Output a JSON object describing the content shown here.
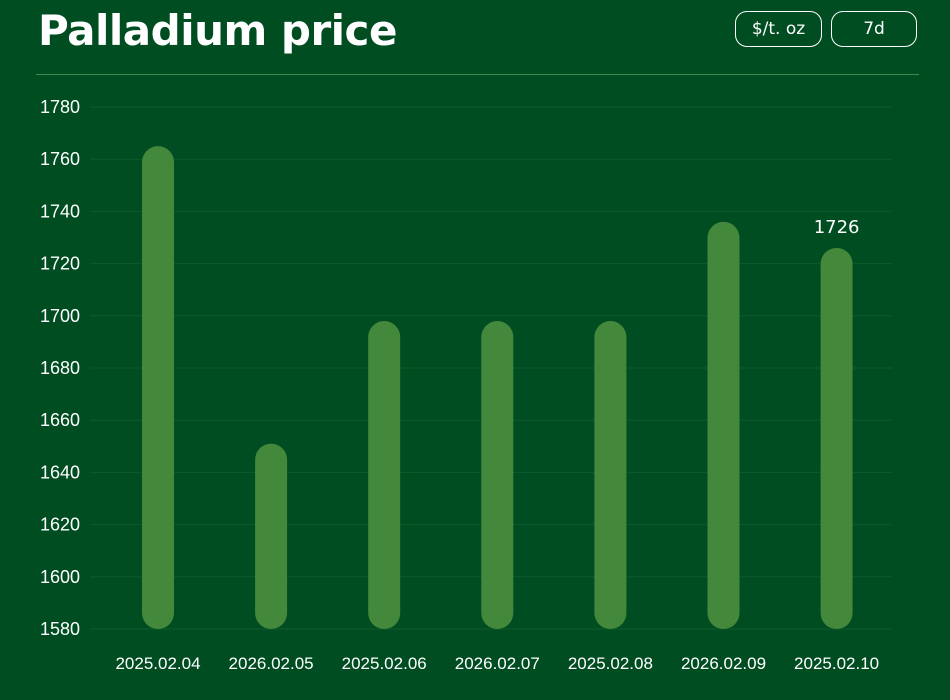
{
  "header": {
    "title": "Palladium price",
    "unit_label": "$/t. oz",
    "range_label": "7d"
  },
  "colors": {
    "background": "#004d22",
    "bar": "#44883c",
    "grid": "#0f5a2c",
    "text": "#ffffff"
  },
  "chart_data": {
    "type": "bar",
    "title": "Palladium price",
    "categories": [
      "2025.02.04",
      "2026.02.05",
      "2025.02.06",
      "2026.02.07",
      "2025.02.08",
      "2026.02.09",
      "2025.02.10"
    ],
    "values": [
      1765,
      1651,
      1698,
      1698,
      1698,
      1736,
      1726
    ],
    "data_labels": [
      {
        "index": 6,
        "text": "1726"
      }
    ],
    "ylim": [
      1580,
      1780
    ],
    "yticks": [
      1580,
      1600,
      1620,
      1640,
      1660,
      1680,
      1700,
      1720,
      1740,
      1760,
      1780
    ],
    "grid": true,
    "legend": "none"
  }
}
